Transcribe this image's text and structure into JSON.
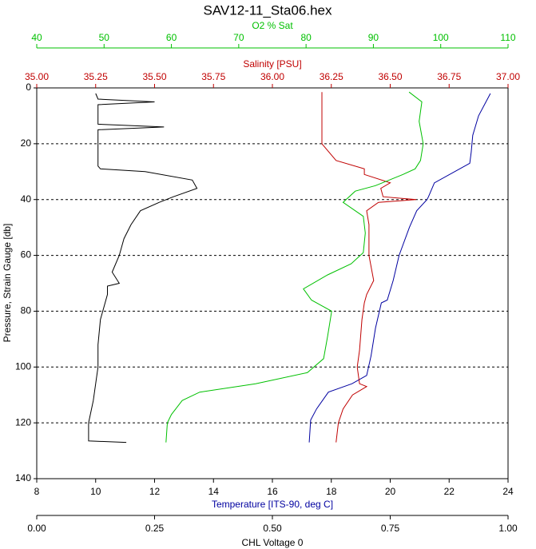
{
  "chart_data": {
    "type": "profile",
    "title": "SAV12-11_Sta06.hex",
    "y_label": "Pressure, Strain Gauge [db]",
    "ylim": [
      0,
      140
    ],
    "y_inverted": true,
    "yticks": [
      0,
      20,
      40,
      60,
      80,
      100,
      120,
      140
    ],
    "grid": true,
    "xaxes": [
      {
        "label": "Temperature [ITS-90, deg C]",
        "label_color": "#0000a0",
        "tick_color": "#000000",
        "xlim": [
          8,
          24
        ],
        "xticks": [
          8,
          10,
          12,
          14,
          16,
          18,
          20,
          22,
          24
        ]
      },
      {
        "label": "Salinity [PSU]",
        "label_color": "#c00000",
        "tick_color": "#c00000",
        "xlim": [
          35,
          37
        ],
        "xticks": [
          {
            "value": 35,
            "label": "35.00"
          },
          {
            "value": 35.25,
            "label": "35.25"
          },
          {
            "value": 35.5,
            "label": "35.50"
          },
          {
            "value": 35.75,
            "label": "35.75"
          },
          {
            "value": 36,
            "label": "36.00"
          },
          {
            "value": 36.25,
            "label": "36.25"
          },
          {
            "value": 36.5,
            "label": "36.50"
          },
          {
            "value": 36.75,
            "label": "36.75"
          },
          {
            "value": 37,
            "label": "37.00"
          }
        ]
      },
      {
        "label": "O2 % Sat",
        "label_color": "#00c000",
        "tick_color": "#00c000",
        "xlim": [
          40,
          110
        ],
        "xticks": [
          40,
          50,
          60,
          70,
          80,
          90,
          100,
          110
        ]
      },
      {
        "label": "CHL Voltage 0",
        "label_color": "#000000",
        "tick_color": "#000000",
        "xlim": [
          0,
          1
        ],
        "xticks": [
          {
            "value": 0,
            "label": "0.00"
          },
          {
            "value": 0.25,
            "label": "0.25"
          },
          {
            "value": 0.5,
            "label": "0.50"
          },
          {
            "value": 0.75,
            "label": "0.75"
          },
          {
            "value": 1,
            "label": "1.00"
          }
        ]
      }
    ],
    "series": [
      {
        "axis": 0,
        "color": "#0000a0",
        "pressure": [
          2,
          10,
          17,
          23,
          27,
          34,
          39,
          40,
          44,
          50,
          60,
          69,
          76,
          77,
          86,
          96,
          103,
          106,
          109,
          115,
          119,
          127
        ],
        "values": [
          23.4,
          23.0,
          22.8,
          22.75,
          22.7,
          21.5,
          21.3,
          21.25,
          20.9,
          20.65,
          20.3,
          20.1,
          19.9,
          19.7,
          19.5,
          19.35,
          19.2,
          18.7,
          17.9,
          17.5,
          17.3,
          17.25
        ]
      },
      {
        "axis": 1,
        "color": "#c00000",
        "pressure": [
          1.5,
          20,
          26,
          29,
          31,
          34,
          36,
          39,
          40,
          41,
          44,
          49,
          54,
          60,
          69,
          74,
          77,
          83,
          94,
          100,
          106,
          107,
          110,
          115,
          120,
          127
        ],
        "values": [
          36.21,
          36.21,
          36.27,
          36.39,
          36.39,
          36.5,
          36.46,
          36.47,
          36.61,
          36.45,
          36.4,
          36.41,
          36.41,
          36.41,
          36.43,
          36.4,
          36.39,
          36.38,
          36.37,
          36.36,
          36.37,
          36.4,
          36.34,
          36.3,
          36.28,
          36.27
        ]
      },
      {
        "axis": 2,
        "color": "#00c000",
        "pressure": [
          1.5,
          5,
          12,
          20,
          26,
          29,
          31,
          35,
          37,
          41,
          46,
          52,
          59,
          63,
          67,
          72,
          76,
          80,
          89,
          97,
          102,
          106,
          109,
          112,
          117,
          120,
          127
        ],
        "values": [
          95.3,
          97.2,
          96.8,
          97.4,
          97.0,
          96.2,
          94.4,
          90.3,
          87.3,
          85.5,
          88.5,
          88.8,
          88.5,
          86.7,
          83.2,
          79.6,
          80.8,
          83.8,
          83.2,
          82.6,
          80.2,
          72.5,
          64.2,
          61.6,
          60.0,
          59.4,
          59.2
        ]
      },
      {
        "axis": 3,
        "color": "#000000",
        "pressure": [
          2,
          4,
          5,
          6,
          13,
          14,
          15,
          28,
          29,
          30,
          33,
          36,
          39,
          41,
          44,
          49,
          54,
          60,
          66,
          70,
          71,
          74,
          83,
          92,
          100,
          112,
          120,
          126.5,
          127
        ],
        "values": [
          0.125,
          0.13,
          0.25,
          0.13,
          0.13,
          0.27,
          0.13,
          0.13,
          0.135,
          0.23,
          0.33,
          0.34,
          0.29,
          0.26,
          0.22,
          0.2,
          0.185,
          0.175,
          0.16,
          0.175,
          0.15,
          0.15,
          0.135,
          0.13,
          0.13,
          0.12,
          0.11,
          0.11,
          0.19
        ]
      }
    ]
  }
}
